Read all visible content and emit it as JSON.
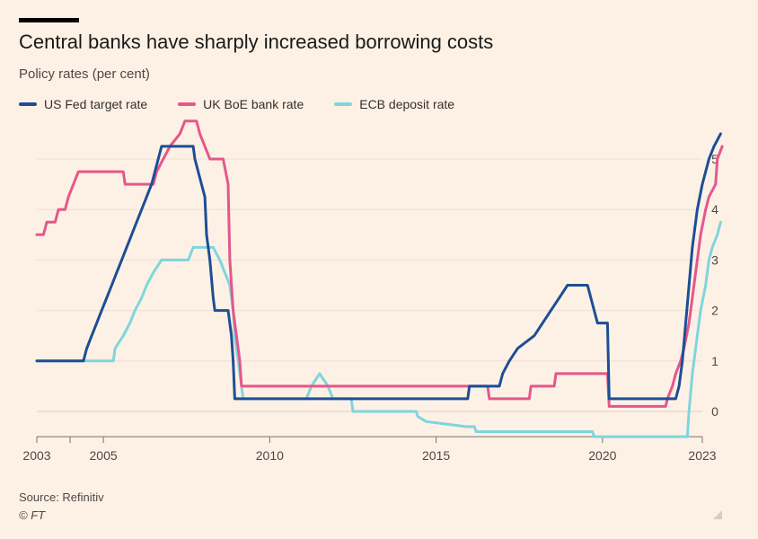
{
  "header": {
    "title": "Central banks have sharply increased borrowing costs",
    "subtitle": "Policy rates (per cent)"
  },
  "footer": {
    "source": "Source: Refinitiv",
    "credit": "© FT"
  },
  "chart_data": {
    "type": "line",
    "title": "Central banks have sharply increased borrowing costs",
    "subtitle": "Policy rates (per cent)",
    "xlabel": "",
    "ylabel": "",
    "xlim": [
      2003,
      2023
    ],
    "ylim": [
      -0.5,
      5.75
    ],
    "x_ticks": [
      2003,
      2005,
      2010,
      2015,
      2020,
      2023
    ],
    "x_minor_ticks": [
      2004
    ],
    "y_ticks": [
      0,
      1,
      2,
      3,
      4,
      5
    ],
    "y_axis_side": "right",
    "grid": true,
    "legend_position": "top",
    "series": [
      {
        "name": "US Fed target rate",
        "color": "#1d4e95",
        "points": [
          [
            2003.0,
            1.0
          ],
          [
            2004.4,
            1.0
          ],
          [
            2004.5,
            1.25
          ],
          [
            2004.65,
            1.5
          ],
          [
            2004.8,
            1.75
          ],
          [
            2004.95,
            2.0
          ],
          [
            2005.1,
            2.25
          ],
          [
            2005.25,
            2.5
          ],
          [
            2005.4,
            2.75
          ],
          [
            2005.55,
            3.0
          ],
          [
            2005.7,
            3.25
          ],
          [
            2005.85,
            3.5
          ],
          [
            2006.0,
            3.75
          ],
          [
            2006.15,
            4.0
          ],
          [
            2006.3,
            4.25
          ],
          [
            2006.45,
            4.5
          ],
          [
            2006.55,
            4.75
          ],
          [
            2006.65,
            5.0
          ],
          [
            2006.75,
            5.25
          ],
          [
            2007.7,
            5.25
          ],
          [
            2007.75,
            5.0
          ],
          [
            2007.85,
            4.75
          ],
          [
            2007.95,
            4.5
          ],
          [
            2008.05,
            4.25
          ],
          [
            2008.1,
            3.5
          ],
          [
            2008.2,
            3.0
          ],
          [
            2008.3,
            2.25
          ],
          [
            2008.35,
            2.0
          ],
          [
            2008.75,
            2.0
          ],
          [
            2008.85,
            1.5
          ],
          [
            2008.9,
            1.0
          ],
          [
            2008.95,
            0.25
          ],
          [
            2015.95,
            0.25
          ],
          [
            2016.0,
            0.5
          ],
          [
            2016.9,
            0.5
          ],
          [
            2017.0,
            0.75
          ],
          [
            2017.2,
            1.0
          ],
          [
            2017.45,
            1.25
          ],
          [
            2017.95,
            1.5
          ],
          [
            2018.2,
            1.75
          ],
          [
            2018.45,
            2.0
          ],
          [
            2018.7,
            2.25
          ],
          [
            2018.95,
            2.5
          ],
          [
            2019.55,
            2.5
          ],
          [
            2019.65,
            2.25
          ],
          [
            2019.75,
            2.0
          ],
          [
            2019.85,
            1.75
          ],
          [
            2020.15,
            1.75
          ],
          [
            2020.2,
            0.25
          ],
          [
            2022.2,
            0.25
          ],
          [
            2022.3,
            0.5
          ],
          [
            2022.4,
            1.0
          ],
          [
            2022.5,
            1.75
          ],
          [
            2022.6,
            2.5
          ],
          [
            2022.7,
            3.25
          ],
          [
            2022.85,
            4.0
          ],
          [
            2023.0,
            4.5
          ],
          [
            2023.1,
            4.75
          ],
          [
            2023.2,
            5.0
          ],
          [
            2023.35,
            5.25
          ],
          [
            2023.55,
            5.5
          ]
        ]
      },
      {
        "name": "UK BoE bank rate",
        "color": "#e5578b",
        "points": [
          [
            2003.0,
            3.5
          ],
          [
            2003.2,
            3.5
          ],
          [
            2003.3,
            3.75
          ],
          [
            2003.55,
            3.75
          ],
          [
            2003.65,
            4.0
          ],
          [
            2003.85,
            4.0
          ],
          [
            2003.95,
            4.25
          ],
          [
            2004.1,
            4.5
          ],
          [
            2004.25,
            4.75
          ],
          [
            2005.6,
            4.75
          ],
          [
            2005.65,
            4.5
          ],
          [
            2006.5,
            4.5
          ],
          [
            2006.6,
            4.75
          ],
          [
            2006.8,
            5.0
          ],
          [
            2007.0,
            5.25
          ],
          [
            2007.3,
            5.5
          ],
          [
            2007.45,
            5.75
          ],
          [
            2007.8,
            5.75
          ],
          [
            2007.9,
            5.5
          ],
          [
            2008.05,
            5.25
          ],
          [
            2008.2,
            5.0
          ],
          [
            2008.6,
            5.0
          ],
          [
            2008.75,
            4.5
          ],
          [
            2008.8,
            3.0
          ],
          [
            2008.9,
            2.0
          ],
          [
            2009.0,
            1.5
          ],
          [
            2009.1,
            1.0
          ],
          [
            2009.15,
            0.5
          ],
          [
            2016.55,
            0.5
          ],
          [
            2016.6,
            0.25
          ],
          [
            2017.8,
            0.25
          ],
          [
            2017.85,
            0.5
          ],
          [
            2018.55,
            0.5
          ],
          [
            2018.6,
            0.75
          ],
          [
            2020.15,
            0.75
          ],
          [
            2020.2,
            0.1
          ],
          [
            2021.9,
            0.1
          ],
          [
            2021.95,
            0.25
          ],
          [
            2022.1,
            0.5
          ],
          [
            2022.2,
            0.75
          ],
          [
            2022.35,
            1.0
          ],
          [
            2022.45,
            1.25
          ],
          [
            2022.6,
            1.75
          ],
          [
            2022.7,
            2.25
          ],
          [
            2022.85,
            3.0
          ],
          [
            2022.95,
            3.5
          ],
          [
            2023.1,
            4.0
          ],
          [
            2023.2,
            4.25
          ],
          [
            2023.4,
            4.5
          ],
          [
            2023.45,
            5.0
          ],
          [
            2023.6,
            5.25
          ]
        ]
      },
      {
        "name": "ECB deposit rate",
        "color": "#7fd5dd",
        "points": [
          [
            2003.0,
            1.0
          ],
          [
            2005.3,
            1.0
          ],
          [
            2005.35,
            1.25
          ],
          [
            2005.6,
            1.5
          ],
          [
            2005.8,
            1.75
          ],
          [
            2005.95,
            2.0
          ],
          [
            2006.15,
            2.25
          ],
          [
            2006.3,
            2.5
          ],
          [
            2006.5,
            2.75
          ],
          [
            2006.75,
            3.0
          ],
          [
            2007.55,
            3.0
          ],
          [
            2007.7,
            3.25
          ],
          [
            2008.3,
            3.25
          ],
          [
            2008.5,
            3.0
          ],
          [
            2008.8,
            2.5
          ],
          [
            2008.9,
            2.0
          ],
          [
            2008.95,
            1.5
          ],
          [
            2009.05,
            1.0
          ],
          [
            2009.15,
            0.5
          ],
          [
            2009.2,
            0.25
          ],
          [
            2011.1,
            0.25
          ],
          [
            2011.25,
            0.5
          ],
          [
            2011.5,
            0.75
          ],
          [
            2011.75,
            0.5
          ],
          [
            2011.9,
            0.25
          ],
          [
            2012.45,
            0.25
          ],
          [
            2012.5,
            0.0
          ],
          [
            2014.4,
            0.0
          ],
          [
            2014.45,
            -0.1
          ],
          [
            2014.7,
            -0.2
          ],
          [
            2015.9,
            -0.3
          ],
          [
            2016.15,
            -0.3
          ],
          [
            2016.2,
            -0.4
          ],
          [
            2019.7,
            -0.4
          ],
          [
            2019.75,
            -0.5
          ],
          [
            2022.55,
            -0.5
          ],
          [
            2022.6,
            0.0
          ],
          [
            2022.7,
            0.75
          ],
          [
            2022.85,
            1.5
          ],
          [
            2022.95,
            2.0
          ],
          [
            2023.1,
            2.5
          ],
          [
            2023.2,
            3.0
          ],
          [
            2023.3,
            3.25
          ],
          [
            2023.45,
            3.5
          ],
          [
            2023.55,
            3.75
          ]
        ]
      }
    ]
  }
}
